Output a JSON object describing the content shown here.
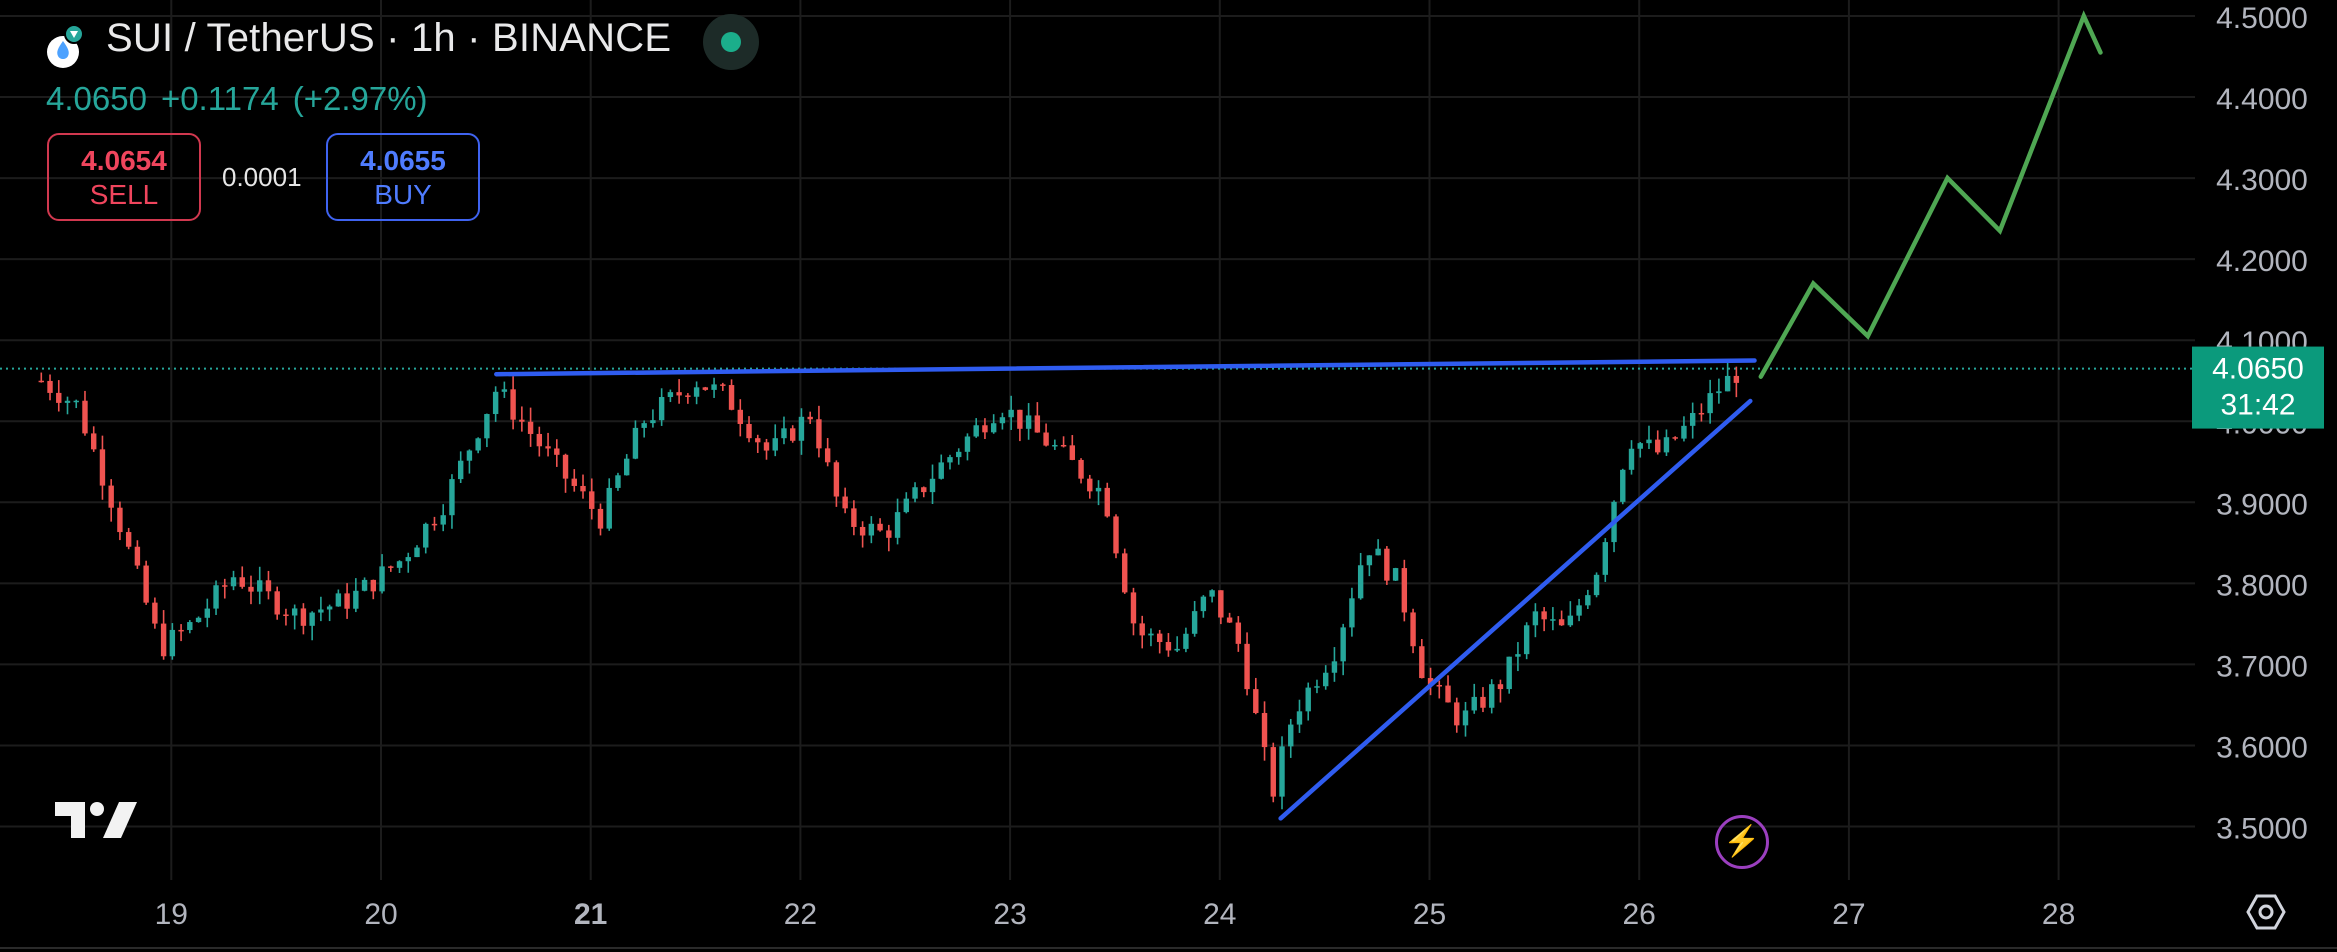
{
  "header": {
    "title": "SUI / TetherUS · 1h · BINANCE",
    "last_price": "4.0650",
    "change": "+0.1174",
    "change_pct": "(+2.97%)",
    "sell_price": "4.0654",
    "sell_label": "SELL",
    "spread": "0.0001",
    "buy_price": "4.0655",
    "buy_label": "BUY"
  },
  "price_tag": {
    "price": "4.0650",
    "countdown": "31:42"
  },
  "colors": {
    "up": "#26a69a",
    "down": "#ef5350",
    "trendline": "#2f5cf0",
    "projection": "#4fa753",
    "price_tag_bg": "#0b9a7c",
    "axis_text": "#b2b5be",
    "grid": "#1c1c1c"
  },
  "icons": [
    "sui-logo-icon",
    "live-indicator-icon",
    "tradingview-logo-icon",
    "lightning-icon",
    "settings-icon"
  ],
  "chart_data": {
    "type": "candlestick",
    "symbol": "SUIUSDT",
    "interval": "1h",
    "x_axis": {
      "type": "date",
      "tick_labels": [
        "19",
        "20",
        "21",
        "22",
        "23",
        "24",
        "25",
        "26",
        "27",
        "28"
      ],
      "range_days": [
        18.35,
        28.6
      ]
    },
    "y_axis": {
      "position": "right",
      "range": [
        3.44,
        4.52
      ],
      "tick_labels": [
        "3.5000",
        "3.6000",
        "3.7000",
        "3.8000",
        "3.9000",
        "4.0000",
        "4.1000",
        "4.2000",
        "4.3000",
        "4.4000",
        "4.5000"
      ]
    },
    "grid": true,
    "current_price_line": 4.065,
    "price_path": [
      [
        18.38,
        4.05
      ],
      [
        18.55,
        4.02
      ],
      [
        18.72,
        3.9
      ],
      [
        18.95,
        3.72
      ],
      [
        19.1,
        3.75
      ],
      [
        19.3,
        3.81
      ],
      [
        19.6,
        3.76
      ],
      [
        19.85,
        3.78
      ],
      [
        20.1,
        3.83
      ],
      [
        20.3,
        3.9
      ],
      [
        20.55,
        4.04
      ],
      [
        20.85,
        3.94
      ],
      [
        21.05,
        3.88
      ],
      [
        21.25,
        4.0
      ],
      [
        21.5,
        4.05
      ],
      [
        21.65,
        4.03
      ],
      [
        21.85,
        3.96
      ],
      [
        22.05,
        4.01
      ],
      [
        22.2,
        3.88
      ],
      [
        22.4,
        3.86
      ],
      [
        22.65,
        3.94
      ],
      [
        22.95,
        4.02
      ],
      [
        23.2,
        3.97
      ],
      [
        23.45,
        3.91
      ],
      [
        23.6,
        3.74
      ],
      [
        23.8,
        3.72
      ],
      [
        23.95,
        3.79
      ],
      [
        24.1,
        3.72
      ],
      [
        24.25,
        3.54
      ],
      [
        24.35,
        3.64
      ],
      [
        24.55,
        3.72
      ],
      [
        24.7,
        3.85
      ],
      [
        24.85,
        3.8
      ],
      [
        24.98,
        3.68
      ],
      [
        25.15,
        3.63
      ],
      [
        25.35,
        3.68
      ],
      [
        25.5,
        3.76
      ],
      [
        25.65,
        3.74
      ],
      [
        25.8,
        3.82
      ],
      [
        25.95,
        3.98
      ],
      [
        26.1,
        3.96
      ],
      [
        26.25,
        4.0
      ],
      [
        26.38,
        4.04
      ],
      [
        26.5,
        4.068
      ]
    ],
    "annotations": [
      {
        "type": "trendline",
        "name": "resistance",
        "points": [
          [
            20.55,
            4.058
          ],
          [
            26.55,
            4.075
          ]
        ]
      },
      {
        "type": "trendline",
        "name": "support",
        "points": [
          [
            24.29,
            3.51
          ],
          [
            26.53,
            4.025
          ]
        ]
      },
      {
        "type": "path",
        "name": "projection",
        "points": [
          [
            26.58,
            4.055
          ],
          [
            26.83,
            4.17
          ],
          [
            27.09,
            4.105
          ],
          [
            27.47,
            4.3
          ],
          [
            27.72,
            4.235
          ],
          [
            28.12,
            4.5
          ],
          [
            28.2,
            4.455
          ]
        ]
      }
    ]
  }
}
